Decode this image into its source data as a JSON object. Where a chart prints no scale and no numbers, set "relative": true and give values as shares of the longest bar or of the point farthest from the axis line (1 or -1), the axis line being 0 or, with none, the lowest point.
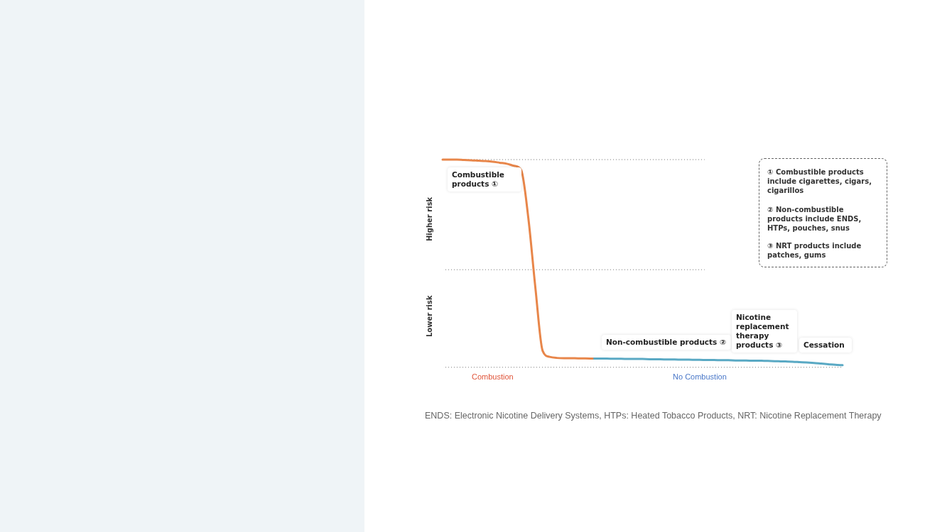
{
  "chart_data": {
    "type": "line",
    "relative": true,
    "categories": [
      null,
      null,
      null,
      null,
      null,
      null,
      null,
      "Combustion",
      null,
      null,
      null,
      null,
      null,
      null,
      null,
      null,
      null,
      null,
      null,
      null,
      null,
      null,
      null,
      null,
      null,
      null,
      null,
      null,
      null,
      null,
      null,
      null,
      null,
      null,
      null,
      null,
      "No Combustion",
      null,
      null,
      null,
      null,
      null,
      null,
      null,
      null,
      null,
      null,
      null,
      null,
      null,
      null,
      null,
      null,
      null,
      null,
      null,
      null
    ],
    "series": [
      {
        "color": "#e8864a",
        "values": [
          1,
          1,
          1,
          0.998,
          0.997,
          0.995,
          0.993,
          0.99,
          0.985,
          0.98,
          0.97,
          0.95,
          0.72,
          0.38,
          0.08,
          0.05,
          0.045,
          0.044,
          0.044,
          0.043,
          0.043,
          0.042,
          null,
          null,
          null,
          null,
          null,
          null,
          null,
          null,
          null,
          null,
          null,
          null,
          null,
          null,
          null,
          null,
          null,
          null,
          null,
          null,
          null,
          null,
          null,
          null,
          null,
          null,
          null,
          null,
          null,
          null,
          null,
          null,
          null,
          null,
          null
        ]
      },
      {
        "color": "#5aa9c4",
        "values": [
          null,
          null,
          null,
          null,
          null,
          null,
          null,
          null,
          null,
          null,
          null,
          null,
          null,
          null,
          null,
          null,
          null,
          null,
          null,
          null,
          null,
          0.042,
          0.042,
          0.042,
          0.041,
          0.041,
          0.04,
          0.04,
          0.04,
          0.039,
          0.039,
          0.038,
          0.038,
          0.037,
          0.037,
          0.036,
          0.036,
          0.035,
          0.035,
          0.034,
          0.034,
          0.033,
          0.033,
          0.032,
          0.032,
          0.031,
          0.03,
          0.029,
          0.028,
          0.027,
          0.025,
          0.023,
          0.021,
          0.018,
          0.015,
          0.012,
          0.01
        ]
      }
    ],
    "ref_lines": [
      {
        "axis": "y",
        "value": 1,
        "color": "#777777",
        "line_style": "dotted"
      },
      {
        "axis": "y",
        "value": 0.47,
        "color": "#777777",
        "line_style": "dotted"
      },
      {
        "axis": "y",
        "value": 0,
        "color": "#777777",
        "line_style": "dotted"
      }
    ],
    "annotations": [
      "Higher risk",
      "Lower risk",
      "Combustible products ①",
      "Non-combustible products ②",
      "Nicotine replacement therapy products ③",
      "Cessation",
      "① Combustible products include cigarettes, cigars, cigarillos",
      "② Non-combustible products include ENDS, HTPs, pouches, snus",
      "③ NRT products include patches, gums",
      "ENDS: Electronic Nicotine Delivery Systems, HTPs: Heated Tobacco Products, NRT: Nicotine Replacement Therapy"
    ],
    "grid": false,
    "legend": false,
    "marker": "none",
    "line_style": "solid"
  }
}
